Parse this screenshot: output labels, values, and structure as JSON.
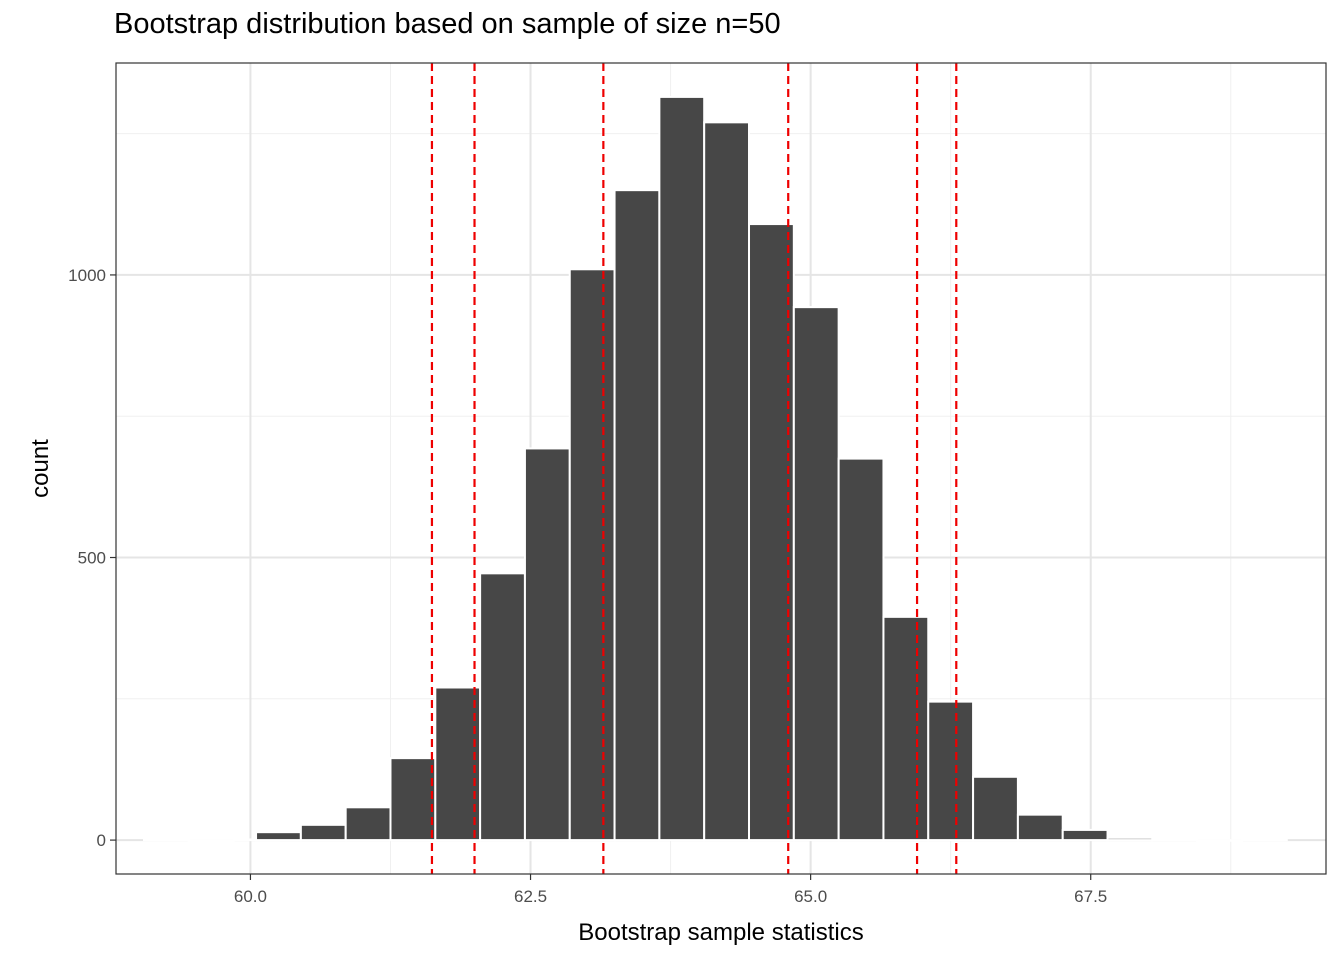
{
  "chart_data": {
    "type": "bar",
    "title": "Bootstrap distribution based on sample of size n=50",
    "xlabel": "Bootstrap sample statistics",
    "ylabel": "count",
    "xlim": [
      58.8,
      69.6
    ],
    "ylim": [
      -60,
      1375
    ],
    "x_ticks": [
      60.0,
      62.5,
      65.0,
      67.5
    ],
    "x_tick_labels": [
      "60.0",
      "62.5",
      "65.0",
      "67.5"
    ],
    "y_ticks": [
      0,
      500,
      1000
    ],
    "y_tick_labels": [
      "0",
      "500",
      "1000"
    ],
    "bin_width": 0.4,
    "bins": [
      {
        "x": 59.25,
        "count": 1
      },
      {
        "x": 59.65,
        "count": 0
      },
      {
        "x": 60.05,
        "count": 1
      },
      {
        "x": 60.25,
        "count": 14
      },
      {
        "x": 60.65,
        "count": 27
      },
      {
        "x": 61.05,
        "count": 58
      },
      {
        "x": 61.45,
        "count": 145
      },
      {
        "x": 61.85,
        "count": 270
      },
      {
        "x": 62.25,
        "count": 472
      },
      {
        "x": 62.65,
        "count": 693
      },
      {
        "x": 63.05,
        "count": 1010
      },
      {
        "x": 63.45,
        "count": 1150
      },
      {
        "x": 63.85,
        "count": 1315
      },
      {
        "x": 64.25,
        "count": 1270
      },
      {
        "x": 64.65,
        "count": 1090
      },
      {
        "x": 65.05,
        "count": 943
      },
      {
        "x": 65.45,
        "count": 675
      },
      {
        "x": 65.85,
        "count": 395
      },
      {
        "x": 66.25,
        "count": 245
      },
      {
        "x": 66.65,
        "count": 112
      },
      {
        "x": 67.05,
        "count": 45
      },
      {
        "x": 67.45,
        "count": 18
      },
      {
        "x": 67.85,
        "count": 4
      },
      {
        "x": 68.25,
        "count": 1
      },
      {
        "x": 68.65,
        "count": 0
      },
      {
        "x": 69.05,
        "count": 1
      }
    ],
    "reference_lines": [
      61.62,
      62.0,
      63.15,
      64.8,
      65.95,
      66.3
    ],
    "grid": true,
    "colors": {
      "bar_fill": "#474747",
      "bar_outline": "#ffffff",
      "reference_line": "#ee0000",
      "grid_major": "#e5e5e5",
      "grid_minor": "#f0f0f0",
      "panel_border": "#333333"
    }
  }
}
